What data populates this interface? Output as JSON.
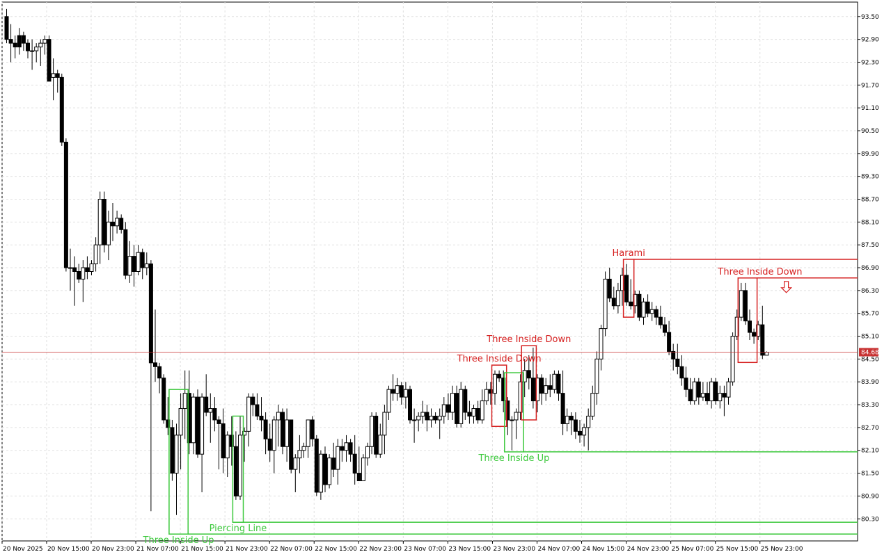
{
  "chart_data": {
    "type": "candlestick",
    "ylim": [
      79.72,
      93.88
    ],
    "yticks": [
      {
        "value": 93.5,
        "label": "93.50"
      },
      {
        "value": 92.9,
        "label": "92.90"
      },
      {
        "value": 92.3,
        "label": "92.30"
      },
      {
        "value": 91.7,
        "label": "91.70"
      },
      {
        "value": 91.1,
        "label": "91.10"
      },
      {
        "value": 90.5,
        "label": "90.50"
      },
      {
        "value": 89.9,
        "label": "89.90"
      },
      {
        "value": 89.3,
        "label": "89.30"
      },
      {
        "value": 88.7,
        "label": "88.70"
      },
      {
        "value": 88.1,
        "label": "88.10"
      },
      {
        "value": 87.5,
        "label": "87.50"
      },
      {
        "value": 86.9,
        "label": "86.90"
      },
      {
        "value": 86.3,
        "label": "86.30"
      },
      {
        "value": 85.7,
        "label": "85.70"
      },
      {
        "value": 85.1,
        "label": "85.10"
      },
      {
        "value": 84.5,
        "label": "84.50"
      },
      {
        "value": 83.9,
        "label": "83.90"
      },
      {
        "value": 83.3,
        "label": "83.30"
      },
      {
        "value": 82.7,
        "label": "82.70"
      },
      {
        "value": 82.1,
        "label": "82.10"
      },
      {
        "value": 81.5,
        "label": "81.50"
      },
      {
        "value": 80.9,
        "label": "80.90"
      },
      {
        "value": 80.3,
        "label": "80.30"
      }
    ],
    "xticks": [
      {
        "value": -1,
        "label": "20 Nov 2025"
      },
      {
        "value": 9.5,
        "label": "20 Nov 15:00"
      },
      {
        "value": 20,
        "label": "20 Nov 23:00"
      },
      {
        "value": 30.5,
        "label": "21 Nov 07:00"
      },
      {
        "value": 41,
        "label": "21 Nov 15:00"
      },
      {
        "value": 51.5,
        "label": "21 Nov 23:00"
      },
      {
        "value": 62,
        "label": "22 Nov 07:00"
      },
      {
        "value": 72.5,
        "label": "22 Nov 15:00"
      },
      {
        "value": 83,
        "label": "22 Nov 23:00"
      },
      {
        "value": 93.5,
        "label": "23 Nov 07:00"
      },
      {
        "value": 104,
        "label": "23 Nov 15:00"
      },
      {
        "value": 114.5,
        "label": "23 Nov 23:00"
      },
      {
        "value": 125,
        "label": "24 Nov 07:00"
      },
      {
        "value": 135.5,
        "label": "24 Nov 15:00"
      },
      {
        "value": 146,
        "label": "24 Nov 23:00"
      },
      {
        "value": 156.5,
        "label": "25 Nov 07:00"
      },
      {
        "value": 167,
        "label": "25 Nov 15:00"
      },
      {
        "value": 177.5,
        "label": "25 Nov 23:00"
      }
    ],
    "grid": true,
    "current_price": 84.68,
    "current_color": "#c83232",
    "up_color": "#ffffff",
    "down_color": "#000000",
    "candles": [
      [
        93.5,
        93.7,
        92.8,
        92.9
      ],
      [
        92.9,
        93.3,
        92.3,
        92.8
      ],
      [
        92.8,
        93.0,
        92.4,
        92.7
      ],
      [
        93.0,
        93.2,
        92.5,
        92.7
      ],
      [
        93.0,
        93.1,
        92.6,
        92.8
      ],
      [
        92.8,
        92.9,
        92.4,
        92.6
      ],
      [
        92.6,
        92.9,
        92.1,
        92.6
      ],
      [
        92.6,
        92.8,
        92.3,
        92.7
      ],
      [
        92.7,
        92.9,
        92.2,
        92.8
      ],
      [
        92.8,
        93.0,
        92.5,
        92.9
      ],
      [
        92.9,
        93.0,
        91.8,
        91.8
      ],
      [
        91.9,
        92.4,
        91.3,
        92.0
      ],
      [
        92.0,
        92.1,
        91.5,
        91.9
      ],
      [
        91.9,
        92.0,
        90.1,
        90.2
      ],
      [
        90.2,
        90.3,
        86.8,
        86.9
      ],
      [
        86.9,
        87.4,
        86.3,
        86.9
      ],
      [
        86.9,
        87.2,
        85.9,
        86.8
      ],
      [
        86.8,
        87.0,
        86.5,
        86.6
      ],
      [
        86.6,
        87.1,
        86.0,
        86.9
      ],
      [
        86.9,
        87.2,
        86.6,
        86.8
      ],
      [
        86.8,
        87.1,
        86.7,
        87.0
      ],
      [
        87.0,
        87.7,
        86.8,
        87.5
      ],
      [
        87.5,
        88.9,
        87.0,
        88.7
      ],
      [
        88.7,
        88.9,
        87.3,
        87.5
      ],
      [
        87.5,
        88.4,
        87.1,
        88.1
      ],
      [
        88.1,
        88.6,
        87.6,
        88.0
      ],
      [
        88.0,
        88.4,
        87.8,
        88.2
      ],
      [
        88.2,
        88.3,
        87.8,
        87.9
      ],
      [
        87.9,
        88.1,
        86.6,
        86.7
      ],
      [
        86.7,
        87.6,
        86.5,
        87.2
      ],
      [
        87.2,
        87.5,
        86.4,
        86.8
      ],
      [
        86.8,
        87.5,
        86.7,
        87.3
      ],
      [
        87.3,
        87.4,
        86.6,
        86.9
      ],
      [
        86.9,
        87.3,
        86.7,
        87.0
      ],
      [
        87.0,
        87.1,
        80.5,
        84.4
      ],
      [
        84.4,
        85.8,
        83.9,
        84.3
      ],
      [
        84.3,
        84.4,
        83.6,
        84.0
      ],
      [
        84.0,
        84.1,
        82.8,
        82.9
      ],
      [
        82.9,
        83.5,
        82.5,
        82.7
      ],
      [
        82.7,
        82.9,
        81.3,
        81.5
      ],
      [
        81.5,
        82.8,
        80.4,
        82.5
      ],
      [
        82.5,
        83.6,
        81.6,
        83.2
      ],
      [
        83.2,
        84.2,
        82.4,
        83.6
      ],
      [
        83.6,
        84.2,
        82.0,
        82.3
      ],
      [
        82.3,
        83.6,
        82.0,
        83.5
      ],
      [
        83.5,
        83.7,
        81.9,
        82.0
      ],
      [
        82.0,
        83.6,
        81.0,
        83.5
      ],
      [
        83.5,
        84.1,
        83.0,
        83.1
      ],
      [
        83.1,
        83.6,
        82.3,
        83.2
      ],
      [
        83.2,
        83.5,
        82.6,
        82.9
      ],
      [
        82.9,
        83.0,
        81.6,
        82.8
      ],
      [
        82.8,
        83.2,
        81.5,
        81.9
      ],
      [
        81.9,
        82.6,
        81.4,
        82.5
      ],
      [
        82.5,
        83.0,
        81.7,
        82.2
      ],
      [
        82.2,
        82.6,
        80.8,
        80.9
      ],
      [
        80.9,
        83.0,
        80.8,
        82.5
      ],
      [
        82.5,
        82.7,
        81.8,
        82.6
      ],
      [
        82.6,
        83.6,
        82.2,
        83.5
      ],
      [
        83.5,
        83.6,
        83.0,
        83.3
      ],
      [
        83.3,
        83.6,
        82.9,
        83.0
      ],
      [
        83.0,
        83.5,
        82.6,
        82.9
      ],
      [
        82.9,
        83.1,
        82.0,
        82.4
      ],
      [
        82.4,
        82.8,
        81.8,
        82.1
      ],
      [
        82.1,
        83.0,
        81.5,
        82.9
      ],
      [
        82.9,
        83.3,
        82.2,
        83.1
      ],
      [
        83.1,
        83.2,
        82.0,
        82.2
      ],
      [
        82.2,
        83.2,
        81.8,
        82.9
      ],
      [
        82.9,
        82.9,
        81.5,
        81.6
      ],
      [
        81.6,
        82.0,
        81.0,
        81.9
      ],
      [
        81.9,
        82.5,
        81.5,
        82.1
      ],
      [
        82.1,
        82.3,
        81.9,
        82.2
      ],
      [
        82.2,
        82.9,
        81.9,
        82.9
      ],
      [
        82.9,
        83.0,
        82.2,
        82.4
      ],
      [
        82.4,
        82.5,
        80.9,
        81.0
      ],
      [
        81.0,
        82.1,
        80.8,
        82.0
      ],
      [
        82.0,
        82.2,
        81.0,
        81.2
      ],
      [
        81.2,
        82.0,
        81.1,
        81.9
      ],
      [
        81.9,
        82.3,
        81.4,
        81.6
      ],
      [
        81.6,
        82.4,
        81.2,
        82.2
      ],
      [
        82.2,
        82.4,
        81.8,
        82.1
      ],
      [
        82.1,
        82.5,
        81.8,
        82.3
      ],
      [
        82.3,
        82.4,
        81.8,
        82.0
      ],
      [
        82.0,
        82.5,
        81.2,
        81.5
      ],
      [
        81.5,
        82.2,
        81.3,
        81.3
      ],
      [
        81.3,
        82.0,
        81.3,
        81.9
      ],
      [
        81.9,
        82.3,
        81.7,
        82.2
      ],
      [
        82.2,
        83.1,
        82.0,
        83.0
      ],
      [
        83.0,
        83.1,
        81.9,
        82.0
      ],
      [
        82.0,
        82.8,
        81.9,
        82.5
      ],
      [
        82.5,
        83.3,
        82.0,
        83.1
      ],
      [
        83.1,
        83.8,
        82.9,
        83.7
      ],
      [
        83.7,
        84.1,
        83.4,
        83.6
      ],
      [
        83.6,
        84.0,
        83.4,
        83.8
      ],
      [
        83.8,
        83.9,
        83.3,
        83.5
      ],
      [
        83.5,
        83.9,
        83.2,
        83.7
      ],
      [
        83.7,
        83.8,
        82.8,
        82.9
      ],
      [
        82.9,
        83.2,
        82.3,
        82.9
      ],
      [
        82.9,
        83.1,
        82.6,
        83.0
      ],
      [
        83.0,
        83.4,
        82.8,
        83.1
      ],
      [
        83.1,
        83.3,
        82.6,
        82.9
      ],
      [
        82.9,
        83.2,
        82.7,
        83.0
      ],
      [
        83.0,
        83.1,
        82.8,
        82.9
      ],
      [
        82.9,
        83.2,
        82.4,
        83.0
      ],
      [
        83.0,
        83.5,
        82.8,
        83.3
      ],
      [
        83.3,
        83.6,
        82.9,
        83.1
      ],
      [
        83.1,
        83.8,
        82.9,
        83.6
      ],
      [
        83.6,
        83.8,
        82.7,
        82.8
      ],
      [
        82.8,
        83.9,
        82.7,
        83.7
      ],
      [
        83.7,
        83.8,
        82.9,
        83.1
      ],
      [
        83.1,
        83.4,
        82.8,
        83.0
      ],
      [
        83.0,
        83.3,
        82.8,
        83.2
      ],
      [
        83.2,
        83.4,
        82.8,
        82.9
      ],
      [
        82.9,
        83.7,
        82.8,
        83.4
      ],
      [
        83.4,
        83.9,
        83.3,
        83.7
      ],
      [
        83.7,
        83.9,
        83.3,
        83.6
      ],
      [
        83.6,
        84.2,
        83.3,
        84.1
      ],
      [
        84.1,
        84.2,
        83.9,
        84.0
      ],
      [
        84.0,
        84.2,
        83.1,
        83.4
      ],
      [
        83.4,
        83.5,
        82.5,
        82.9
      ],
      [
        82.9,
        83.0,
        82.1,
        82.9
      ],
      [
        82.9,
        83.2,
        82.4,
        83.1
      ],
      [
        83.1,
        84.1,
        82.9,
        83.9
      ],
      [
        83.9,
        84.5,
        83.5,
        84.2
      ],
      [
        84.2,
        84.6,
        83.7,
        84.0
      ],
      [
        84.0,
        84.8,
        83.2,
        83.4
      ],
      [
        83.4,
        84.1,
        83.1,
        84.0
      ],
      [
        84.0,
        84.1,
        83.3,
        83.6
      ],
      [
        83.6,
        84.0,
        83.4,
        83.8
      ],
      [
        83.8,
        84.1,
        83.5,
        83.7
      ],
      [
        83.7,
        84.2,
        83.6,
        84.1
      ],
      [
        84.1,
        84.2,
        83.4,
        83.6
      ],
      [
        83.6,
        84.2,
        82.5,
        82.8
      ],
      [
        82.8,
        83.2,
        82.6,
        83.0
      ],
      [
        83.0,
        83.1,
        82.5,
        82.9
      ],
      [
        82.9,
        83.1,
        82.4,
        82.6
      ],
      [
        82.6,
        82.9,
        82.3,
        82.5
      ],
      [
        82.5,
        82.8,
        82.2,
        82.7
      ],
      [
        82.7,
        83.2,
        82.1,
        83.0
      ],
      [
        83.0,
        83.8,
        82.9,
        83.6
      ],
      [
        83.6,
        84.7,
        83.3,
        84.5
      ],
      [
        84.5,
        85.4,
        84.2,
        85.3
      ],
      [
        85.3,
        86.8,
        85.1,
        86.6
      ],
      [
        86.6,
        86.9,
        86.0,
        86.1
      ],
      [
        86.1,
        86.4,
        85.8,
        85.9
      ],
      [
        85.9,
        86.5,
        85.7,
        86.3
      ],
      [
        86.3,
        86.9,
        85.9,
        86.7
      ],
      [
        86.7,
        87.0,
        85.9,
        86.0
      ],
      [
        86.0,
        86.6,
        85.8,
        85.9
      ],
      [
        85.9,
        86.3,
        85.7,
        86.2
      ],
      [
        86.2,
        86.3,
        85.5,
        85.6
      ],
      [
        85.6,
        86.1,
        85.4,
        86.0
      ],
      [
        86.0,
        86.2,
        85.6,
        85.7
      ],
      [
        85.7,
        86.0,
        85.5,
        85.8
      ],
      [
        85.8,
        85.9,
        85.4,
        85.6
      ],
      [
        85.6,
        85.9,
        85.3,
        85.4
      ],
      [
        85.4,
        85.6,
        85.1,
        85.2
      ],
      [
        85.2,
        85.5,
        84.6,
        84.7
      ],
      [
        84.7,
        84.9,
        84.2,
        84.5
      ],
      [
        84.5,
        84.9,
        84.1,
        84.3
      ],
      [
        84.3,
        84.6,
        83.8,
        84.0
      ],
      [
        84.0,
        84.3,
        83.5,
        83.7
      ],
      [
        83.7,
        84.0,
        83.3,
        83.4
      ],
      [
        83.4,
        84.0,
        83.3,
        83.9
      ],
      [
        83.9,
        84.0,
        83.3,
        83.5
      ],
      [
        83.5,
        83.9,
        83.4,
        83.6
      ],
      [
        83.6,
        83.9,
        83.3,
        83.4
      ],
      [
        83.4,
        84.0,
        83.2,
        83.9
      ],
      [
        83.9,
        84.0,
        83.3,
        83.4
      ],
      [
        83.4,
        83.8,
        83.2,
        83.6
      ],
      [
        83.6,
        83.8,
        83.0,
        83.5
      ],
      [
        83.5,
        84.0,
        83.3,
        83.9
      ],
      [
        83.9,
        85.2,
        83.8,
        85.1
      ],
      [
        85.1,
        85.8,
        85.0,
        85.6
      ],
      [
        85.6,
        86.5,
        85.5,
        86.3
      ],
      [
        86.3,
        86.5,
        85.4,
        85.5
      ],
      [
        85.5,
        85.8,
        85.0,
        85.2
      ],
      [
        85.2,
        85.3,
        84.9,
        85.1
      ],
      [
        85.1,
        85.5,
        85.0,
        85.4
      ],
      [
        85.4,
        85.9,
        84.5,
        84.6
      ],
      [
        84.6,
        84.7,
        84.6,
        84.68
      ]
    ],
    "patterns": [
      {
        "name": "Three Inside Up",
        "color": "#3cc83c",
        "from": 39,
        "to": 42,
        "high": 83.7,
        "low": 79.9,
        "level": 79.9
      },
      {
        "name": "Piercing Line",
        "color": "#3cc83c",
        "from": 54,
        "to": 55,
        "high": 83.0,
        "low": 80.21,
        "level": 80.21
      },
      {
        "name": "Three Inside Down",
        "color": "#d62020",
        "from": 115,
        "to": 117,
        "high": 84.34,
        "low": 82.73
      },
      {
        "name": "Three Inside Up",
        "color": "#3cc83c",
        "from": 118,
        "to": 121,
        "high": 84.14,
        "low": 82.06,
        "level": 82.06
      },
      {
        "name": "Three Inside Down",
        "color": "#d62020",
        "from": 122,
        "to": 124,
        "high": 84.85,
        "low": 82.9
      },
      {
        "name": "Harami",
        "color": "#d62020",
        "from": 146,
        "to": 147,
        "high": 87.12,
        "low": 85.6,
        "level": 87.12
      },
      {
        "name": "Three Inside Down",
        "color": "#d62020",
        "from": 173,
        "to": 176,
        "high": 86.63,
        "low": 84.41,
        "level": 86.63,
        "arrow": "down"
      }
    ]
  }
}
